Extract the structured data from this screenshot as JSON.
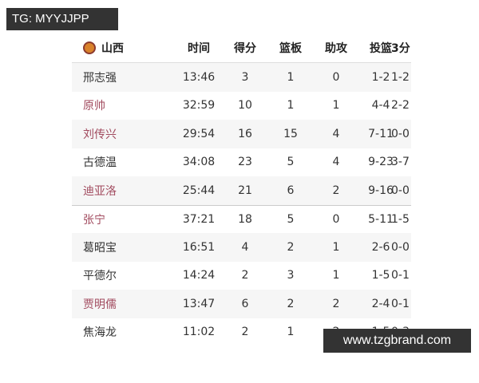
{
  "watermark_tl": "TG: MYYJJPP",
  "watermark_br": "www.tzgbrand.com",
  "table": {
    "team": "山西",
    "headers": [
      "时间",
      "得分",
      "篮板",
      "助攻",
      "投篮",
      "3分"
    ],
    "highlight_color": "#a14a5e",
    "rows": [
      {
        "name": "邢志强",
        "red": false,
        "cells": [
          "13:46",
          "3",
          "1",
          "0",
          "1-2",
          "1-2"
        ]
      },
      {
        "name": "原帅",
        "red": true,
        "cells": [
          "32:59",
          "10",
          "1",
          "1",
          "4-4",
          "2-2"
        ]
      },
      {
        "name": "刘传兴",
        "red": true,
        "cells": [
          "29:54",
          "16",
          "15",
          "4",
          "7-11",
          "0-0"
        ]
      },
      {
        "name": "古德温",
        "red": false,
        "cells": [
          "34:08",
          "23",
          "5",
          "4",
          "9-23",
          "3-7"
        ]
      },
      {
        "name": "迪亚洛",
        "red": true,
        "cells": [
          "25:44",
          "21",
          "6",
          "2",
          "9-16",
          "0-0"
        ]
      },
      {
        "name": "张宁",
        "red": true,
        "cells": [
          "37:21",
          "18",
          "5",
          "0",
          "5-11",
          "1-5"
        ]
      },
      {
        "name": "葛昭宝",
        "red": false,
        "cells": [
          "16:51",
          "4",
          "2",
          "1",
          "2-6",
          "0-0"
        ]
      },
      {
        "name": "平德尔",
        "red": false,
        "cells": [
          "14:24",
          "2",
          "3",
          "1",
          "1-5",
          "0-1"
        ]
      },
      {
        "name": "贾明儒",
        "red": true,
        "cells": [
          "13:47",
          "6",
          "2",
          "2",
          "2-4",
          "0-1"
        ]
      },
      {
        "name": "焦海龙",
        "red": false,
        "cells": [
          "11:02",
          "2",
          "1",
          "2",
          "1-5",
          "0-3"
        ]
      }
    ]
  }
}
